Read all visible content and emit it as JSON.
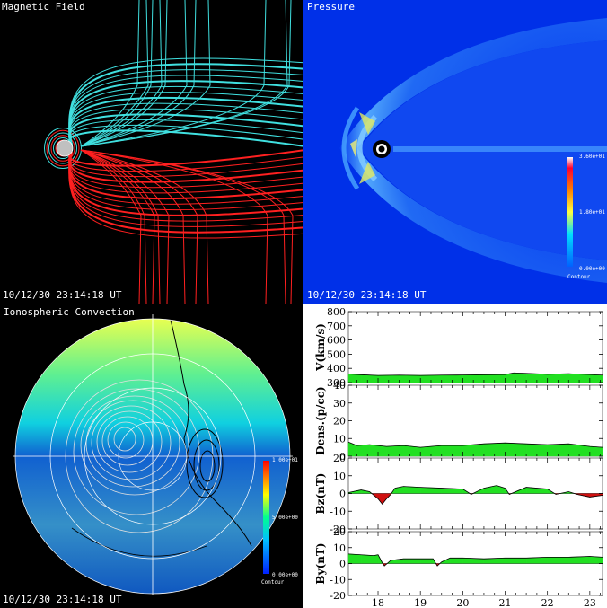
{
  "panels": {
    "magnetic": {
      "title": "Magnetic Field",
      "timestamp": "10/12/30 23:14:18 UT"
    },
    "pressure": {
      "title": "Pressure",
      "timestamp": "10/12/30 23:14:18 UT",
      "colorbar": {
        "max": "3.60e+01",
        "mid": "1.80e+01",
        "min": "0.00e+00",
        "caption": "Contour"
      }
    },
    "ionosphere": {
      "title": "Ionospheric Convection",
      "timestamp": "10/12/30 23:14:18 UT",
      "colorbar": {
        "max": "1.00e+01",
        "mid": "5.00e+00",
        "min": "0.00e+00",
        "caption": "Contour"
      }
    }
  },
  "colors": {
    "field_north": "#40e0e0",
    "field_south": "#ff2020",
    "fill_positive": "#22e022",
    "fill_negative": "#d01010",
    "background": "#000000"
  },
  "chart_data": {
    "type": "area",
    "x_ticks": [
      "18",
      "19",
      "20",
      "21",
      "22",
      "23"
    ],
    "xlim": [
      17.3,
      23.3
    ],
    "subplots": [
      {
        "ylabel": "V(km/s)",
        "ylim": [
          300,
          800
        ],
        "y_ticks": [
          "300",
          "400",
          "500",
          "600",
          "700",
          "800"
        ],
        "baseline": 300,
        "x": [
          17.3,
          17.6,
          18.0,
          18.5,
          19.0,
          19.5,
          20.0,
          20.5,
          21.0,
          21.2,
          21.5,
          22.0,
          22.5,
          23.0,
          23.3
        ],
        "values": [
          360,
          355,
          350,
          352,
          350,
          352,
          353,
          355,
          356,
          368,
          365,
          358,
          362,
          356,
          352
        ]
      },
      {
        "ylabel": "Dens.(p/cc)",
        "ylim": [
          0,
          40
        ],
        "y_ticks": [
          "0",
          "10",
          "20",
          "30",
          "40"
        ],
        "baseline": 0,
        "x": [
          17.3,
          17.5,
          17.8,
          18.2,
          18.6,
          19.0,
          19.5,
          20.0,
          20.5,
          21.0,
          21.5,
          22.0,
          22.5,
          23.0,
          23.3
        ],
        "values": [
          8,
          6,
          6.5,
          5.5,
          6,
          5,
          6,
          6,
          7,
          7.5,
          7,
          6.5,
          7,
          5.5,
          5
        ]
      },
      {
        "ylabel": "Bz(nT)",
        "ylim": [
          -20,
          20
        ],
        "y_ticks": [
          "-20",
          "-10",
          "0",
          "10",
          "20"
        ],
        "baseline": 0,
        "x": [
          17.3,
          17.6,
          17.8,
          17.9,
          18.0,
          18.1,
          18.2,
          18.3,
          18.4,
          18.6,
          19.0,
          19.5,
          20.0,
          20.2,
          20.5,
          20.8,
          21.0,
          21.1,
          21.5,
          22.0,
          22.2,
          22.5,
          22.7,
          23.0,
          23.3
        ],
        "values": [
          0.5,
          2,
          1,
          -1,
          -3,
          -6,
          -3,
          -0.5,
          3,
          4,
          3.5,
          3,
          2.5,
          -0.5,
          3,
          4.5,
          3,
          -0.5,
          3.5,
          2.5,
          -0.5,
          1,
          -0.5,
          -2,
          -1
        ]
      },
      {
        "ylabel": "By(nT)",
        "ylim": [
          -20,
          20
        ],
        "y_ticks": [
          "-20",
          "-10",
          "0",
          "10",
          "20"
        ],
        "baseline": 0,
        "x": [
          17.3,
          17.6,
          17.9,
          18.0,
          18.1,
          18.15,
          18.3,
          18.6,
          19.0,
          19.3,
          19.4,
          19.5,
          19.7,
          20.0,
          20.5,
          21.0,
          21.5,
          22.0,
          22.5,
          23.0,
          23.3
        ],
        "values": [
          6,
          5.5,
          5,
          5.5,
          0.5,
          -1.5,
          2,
          3,
          3,
          3,
          -1.5,
          1,
          3.5,
          3.5,
          3,
          3.5,
          3.5,
          4,
          4,
          4.5,
          4
        ]
      }
    ]
  }
}
